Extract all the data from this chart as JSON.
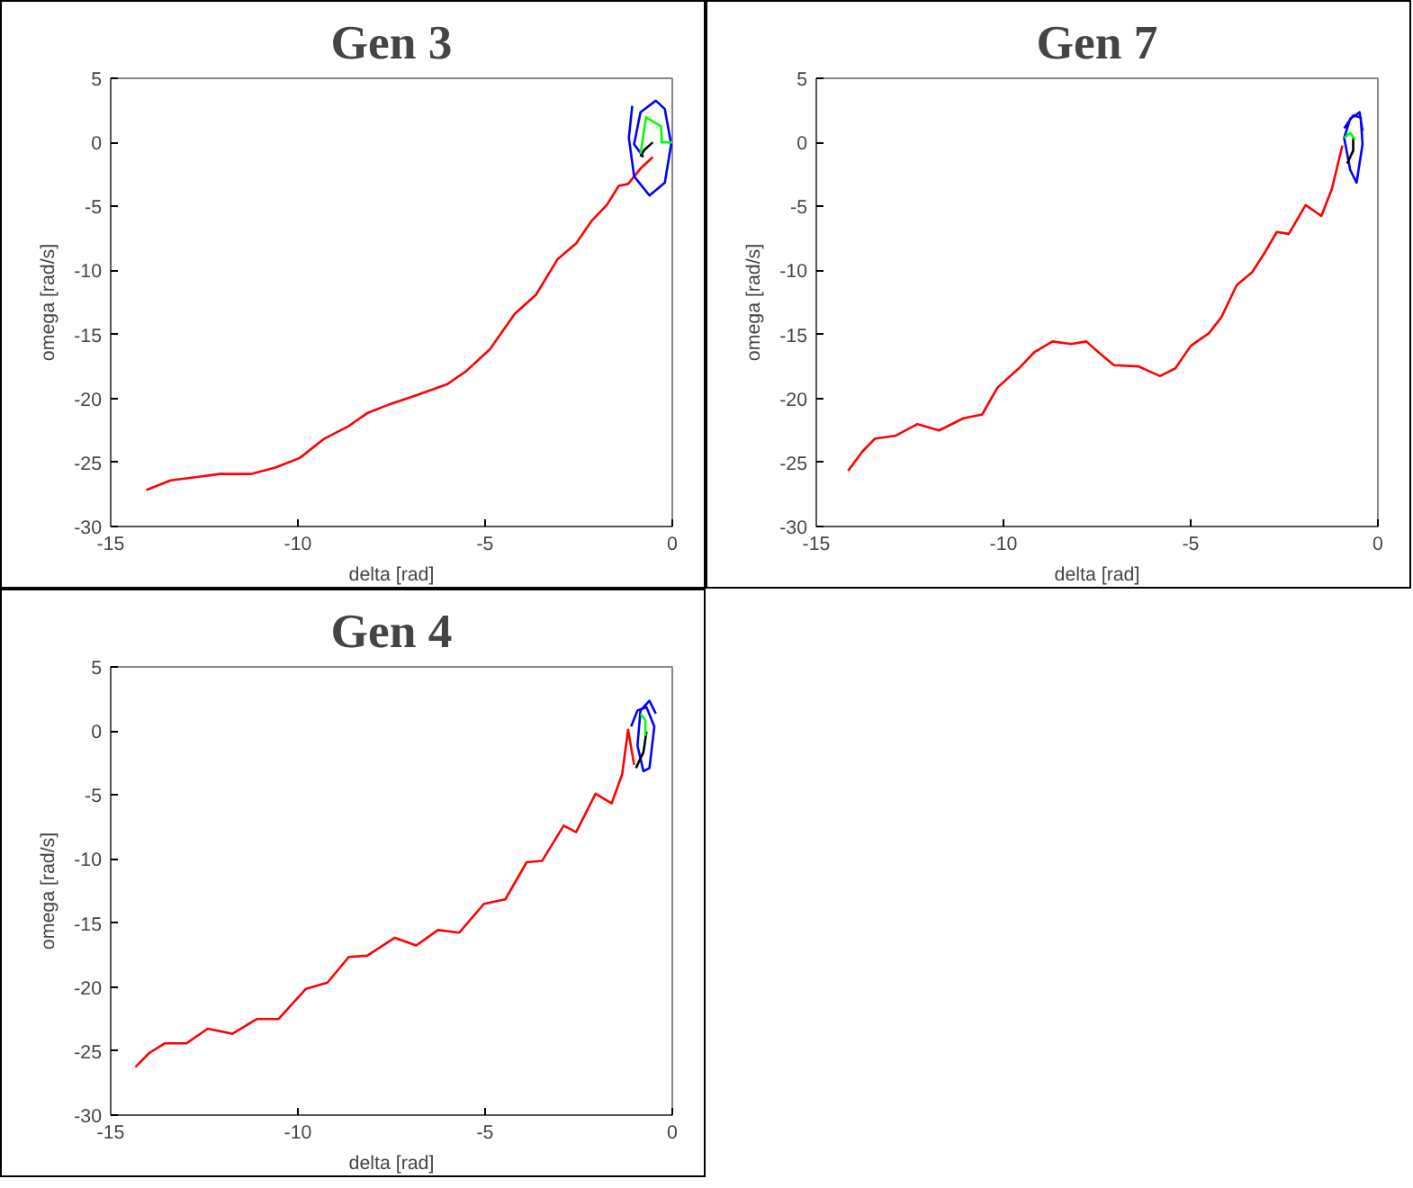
{
  "chart_data": [
    {
      "type": "line",
      "title": "Gen 3",
      "xlabel": "delta [rad]",
      "ylabel": "omega [rad/s]",
      "xlim": [
        -15,
        0
      ],
      "ylim": [
        -30,
        5
      ],
      "xticks": [
        -15,
        -10,
        -5,
        0
      ],
      "yticks": [
        -30,
        -25,
        -20,
        -15,
        -10,
        -5,
        0,
        5
      ],
      "grid": false,
      "series": [
        {
          "color": "#ff0000",
          "x": [
            -14.05,
            -13.4,
            -12.74,
            -12.08,
            -11.26,
            -10.6,
            -9.95,
            -9.3,
            -8.64,
            -8.15,
            -7.5,
            -6.84,
            -6.02,
            -5.52,
            -4.87,
            -4.21,
            -3.64,
            -3.07,
            -2.57,
            -2.16,
            -1.75,
            -1.43,
            -1.18,
            -0.85,
            -0.52
          ],
          "values": [
            -27.15,
            -26.4,
            -26.15,
            -25.9,
            -25.9,
            -25.4,
            -24.65,
            -23.15,
            -22.15,
            -21.15,
            -20.4,
            -19.75,
            -18.9,
            -17.9,
            -16.15,
            -13.4,
            -11.9,
            -9.15,
            -7.9,
            -6.15,
            -4.9,
            -3.4,
            -3.25,
            -2.05,
            -1.15
          ]
        },
        {
          "color": "#0000ff",
          "x": [
            -1.07,
            -1.16,
            -1.02,
            -0.61,
            -0.2,
            -0.03,
            -0.2,
            -0.44,
            -0.85,
            -1.02,
            -0.77
          ],
          "values": [
            2.85,
            0.35,
            -2.65,
            -4.15,
            -3.15,
            -0.15,
            2.6,
            3.25,
            2.35,
            -0.15,
            -1.15
          ]
        },
        {
          "color": "#000000",
          "x": [
            -0.85,
            -0.75,
            -0.52
          ],
          "values": [
            -1.1,
            -0.6,
            0
          ]
        },
        {
          "color": "#00ff00",
          "x": [
            -0.85,
            -0.7,
            -0.3,
            -0.28,
            0
          ],
          "values": [
            -0.9,
            1.95,
            1.25,
            0,
            0
          ]
        }
      ]
    },
    {
      "type": "line",
      "title": "Gen 7",
      "xlabel": "delta [rad]",
      "ylabel": "omega [rad/s]",
      "xlim": [
        -15,
        0
      ],
      "ylim": [
        -30,
        5
      ],
      "xticks": [
        -15,
        -10,
        -5,
        0
      ],
      "yticks": [
        -30,
        -25,
        -20,
        -15,
        -10,
        -5,
        0,
        5
      ],
      "grid": false,
      "series": [
        {
          "color": "#ff0000",
          "x": [
            -14.15,
            -13.77,
            -13.44,
            -12.87,
            -12.3,
            -11.72,
            -11.07,
            -10.57,
            -10.16,
            -9.59,
            -9.18,
            -8.69,
            -8.2,
            -7.79,
            -7.46,
            -7.05,
            -6.39,
            -5.82,
            -5.41,
            -5.0,
            -4.51,
            -4.18,
            -3.77,
            -3.36,
            -3.03,
            -2.7,
            -2.38,
            -1.93,
            -1.51,
            -1.23,
            -0.95
          ],
          "values": [
            -25.65,
            -24.15,
            -23.15,
            -22.9,
            -22.0,
            -22.5,
            -21.55,
            -21.25,
            -19.15,
            -17.65,
            -16.4,
            -15.55,
            -15.75,
            -15.55,
            -16.4,
            -17.4,
            -17.5,
            -18.25,
            -17.65,
            -15.9,
            -14.9,
            -13.65,
            -11.15,
            -10.15,
            -8.65,
            -7.0,
            -7.15,
            -4.9,
            -5.75,
            -3.65,
            -0.25
          ]
        },
        {
          "color": "#0000ff",
          "x": [
            -0.9,
            -0.66,
            -0.46,
            -0.41,
            -0.57,
            -0.74,
            -0.9,
            -0.74,
            -0.49,
            -0.41
          ],
          "values": [
            1.1,
            2.1,
            1.95,
            -0.15,
            -3.15,
            -2.15,
            0.35,
            1.85,
            2.35,
            0.9
          ]
        },
        {
          "color": "#000000",
          "x": [
            -0.82,
            -0.66,
            -0.66
          ],
          "values": [
            -1.65,
            -0.65,
            0.35
          ]
        },
        {
          "color": "#00ff00",
          "x": [
            -0.9,
            -0.74,
            -0.61
          ],
          "values": [
            0.35,
            0.75,
            0.2
          ]
        }
      ]
    },
    {
      "type": "line",
      "title": "Gen 4",
      "xlabel": "delta [rad]",
      "ylabel": "omega [rad/s]",
      "xlim": [
        -15,
        0
      ],
      "ylim": [
        -30,
        5
      ],
      "xticks": [
        -15,
        -10,
        -5,
        0
      ],
      "yticks": [
        -30,
        -25,
        -20,
        -15,
        -10,
        -5,
        0,
        5
      ],
      "grid": false,
      "series": [
        {
          "color": "#ff0000",
          "x": [
            -14.34,
            -13.97,
            -13.56,
            -12.98,
            -12.41,
            -11.75,
            -11.1,
            -10.52,
            -9.79,
            -9.21,
            -8.64,
            -8.15,
            -7.41,
            -6.84,
            -6.26,
            -5.69,
            -5.03,
            -4.46,
            -3.89,
            -3.48,
            -2.9,
            -2.57,
            -2.05,
            -1.62,
            -1.34,
            -1.18,
            -1.02
          ],
          "values": [
            -26.25,
            -25.15,
            -24.4,
            -24.4,
            -23.25,
            -23.65,
            -22.5,
            -22.5,
            -20.15,
            -19.65,
            -17.65,
            -17.55,
            -16.15,
            -16.75,
            -15.55,
            -15.75,
            -13.5,
            -13.15,
            -10.25,
            -10.15,
            -7.4,
            -7.9,
            -4.9,
            -5.65,
            -3.4,
            0.1,
            -2.65
          ]
        },
        {
          "color": "#0000ff",
          "x": [
            -1.1,
            -0.93,
            -0.69,
            -0.48,
            -0.61,
            -0.77,
            -0.93,
            -0.85,
            -0.61,
            -0.44
          ],
          "values": [
            0.35,
            1.6,
            1.85,
            0.35,
            -2.9,
            -3.15,
            -1.15,
            1.6,
            2.35,
            1.35
          ]
        },
        {
          "color": "#000000",
          "x": [
            -0.97,
            -0.77,
            -0.69
          ],
          "values": [
            -2.9,
            -1.65,
            -0.05
          ]
        },
        {
          "color": "#00ff00",
          "x": [
            -0.85,
            -0.72,
            -0.72
          ],
          "values": [
            1.35,
            0.85,
            -0.4
          ]
        }
      ]
    }
  ]
}
